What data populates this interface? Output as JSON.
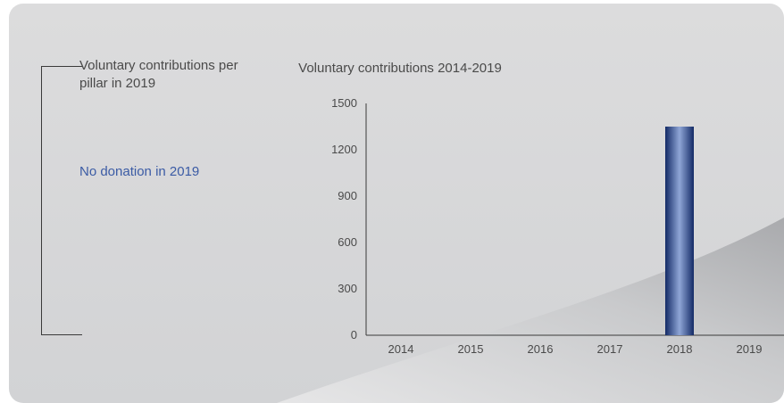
{
  "left_panel": {
    "title": "Voluntary contributions per pillar in 2019",
    "note": "No donation in 2019",
    "note_color": "#3b5ba5"
  },
  "chart_data": {
    "type": "bar",
    "title": "Voluntary contributions 2014-2019",
    "xlabel": "",
    "ylabel": "",
    "categories": [
      "2014",
      "2015",
      "2016",
      "2017",
      "2018",
      "2019"
    ],
    "values": [
      0,
      0,
      0,
      0,
      1350,
      0
    ],
    "ylim": [
      0,
      1500
    ],
    "yticks": [
      0,
      300,
      600,
      900,
      1200,
      1500
    ],
    "grid": false,
    "legend": "none",
    "bar_color": "#1e3f8a"
  }
}
